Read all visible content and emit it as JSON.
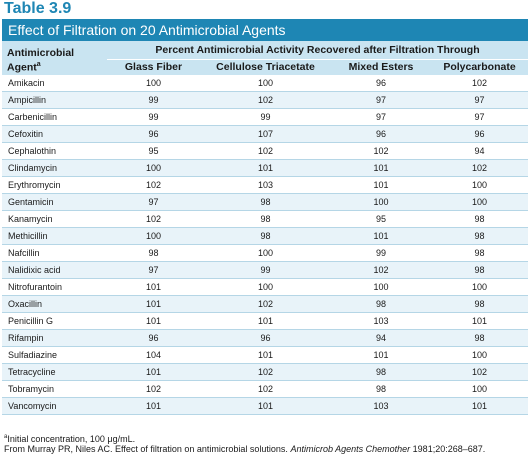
{
  "table_label": "Table 3.9",
  "title": "Effect of Filtration on 20 Antimicrobial Agents",
  "header": {
    "agent_label": "Antimicrobial Agent",
    "agent_footnote_mark": "a",
    "group_label": "Percent Antimicrobial Activity Recovered after Filtration Through",
    "columns": [
      "Glass Fiber",
      "Cellulose Triacetate",
      "Mixed Esters",
      "Polycarbonate"
    ]
  },
  "rows": [
    {
      "agent": "Amikacin",
      "values": [
        "100",
        "100",
        "96",
        "102"
      ]
    },
    {
      "agent": "Ampicillin",
      "values": [
        "99",
        "102",
        "97",
        "97"
      ]
    },
    {
      "agent": "Carbenicillin",
      "values": [
        "99",
        "99",
        "97",
        "97"
      ]
    },
    {
      "agent": "Cefoxitin",
      "values": [
        "96",
        "107",
        "96",
        "96"
      ]
    },
    {
      "agent": "Cephalothin",
      "values": [
        "95",
        "102",
        "102",
        "94"
      ]
    },
    {
      "agent": "Clindamycin",
      "values": [
        "100",
        "101",
        "101",
        "102"
      ]
    },
    {
      "agent": "Erythromycin",
      "values": [
        "102",
        "103",
        "101",
        "100"
      ]
    },
    {
      "agent": "Gentamicin",
      "values": [
        "97",
        "98",
        "100",
        "100"
      ]
    },
    {
      "agent": "Kanamycin",
      "values": [
        "102",
        "98",
        "95",
        "98"
      ]
    },
    {
      "agent": "Methicillin",
      "values": [
        "100",
        "98",
        "101",
        "98"
      ]
    },
    {
      "agent": "Nafcillin",
      "values": [
        "98",
        "100",
        "99",
        "98"
      ]
    },
    {
      "agent": "Nalidixic acid",
      "values": [
        "97",
        "99",
        "102",
        "98"
      ]
    },
    {
      "agent": "Nitrofurantoin",
      "values": [
        "101",
        "100",
        "100",
        "100"
      ]
    },
    {
      "agent": "Oxacillin",
      "values": [
        "101",
        "102",
        "98",
        "98"
      ]
    },
    {
      "agent": "Penicillin G",
      "values": [
        "101",
        "101",
        "103",
        "101"
      ]
    },
    {
      "agent": "Rifampin",
      "values": [
        "96",
        "96",
        "94",
        "98"
      ]
    },
    {
      "agent": "Sulfadiazine",
      "values": [
        "104",
        "101",
        "101",
        "100"
      ]
    },
    {
      "agent": "Tetracycline",
      "values": [
        "101",
        "102",
        "98",
        "102"
      ]
    },
    {
      "agent": "Tobramycin",
      "values": [
        "102",
        "102",
        "98",
        "100"
      ]
    },
    {
      "agent": "Vancomycin",
      "values": [
        "101",
        "101",
        "103",
        "101"
      ]
    }
  ],
  "footnote": {
    "mark": "a",
    "text": "Initial concentration, 100 μg/mL."
  },
  "source": {
    "prefix": "From Murray PR, Niles AC. Effect of filtration on antimicrobial solutions. ",
    "journal": "Antimicrob Agents Chemother",
    "suffix": " 1981;20:268–687."
  },
  "colors": {
    "accent": "#1e86b4",
    "header_bg": "#c9e4f1",
    "alt_row_bg": "#e8f3f9",
    "row_rule": "#b5d6e6"
  }
}
